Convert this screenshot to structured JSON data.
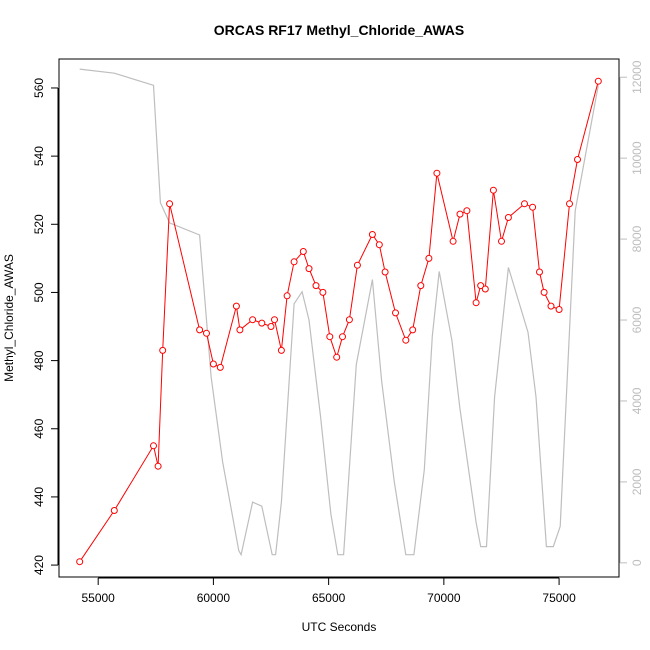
{
  "chart_data": {
    "type": "line",
    "title": "ORCAS RF17 Methyl_Chloride_AWAS",
    "xlabel": "UTC Seconds",
    "ylabel": "Methyl_Chloride_AWAS",
    "y2label": "",
    "xlim": [
      53300,
      77600
    ],
    "ylim": [
      416.5,
      568.5
    ],
    "y2lim": [
      -350,
      12450
    ],
    "x_ticks": [
      55000,
      60000,
      65000,
      70000,
      75000
    ],
    "y_ticks": [
      420,
      440,
      460,
      480,
      500,
      520,
      540,
      560
    ],
    "y2_ticks": [
      0,
      2000,
      4000,
      6000,
      8000,
      10000,
      12000
    ],
    "grid": false,
    "legend": "none",
    "colors": {
      "methyl_chloride": "#ff0000",
      "altitude": "#bebebe",
      "right_axis": "#bdbdbd",
      "frame": "#000000"
    },
    "series": [
      {
        "axis": "left",
        "style": "line+open-circles",
        "points": [
          [
            54200,
            421
          ],
          [
            55700,
            436
          ],
          [
            57400,
            455
          ],
          [
            57600,
            449
          ],
          [
            57800,
            483
          ],
          [
            58100,
            526
          ],
          [
            59400,
            489
          ],
          [
            59700,
            488
          ],
          [
            60000,
            479
          ],
          [
            60300,
            478
          ],
          [
            61000,
            496
          ],
          [
            61150,
            489
          ],
          [
            61700,
            492
          ],
          [
            62100,
            491
          ],
          [
            62500,
            490
          ],
          [
            62650,
            492
          ],
          [
            62950,
            483
          ],
          [
            63200,
            499
          ],
          [
            63500,
            509
          ],
          [
            63900,
            512
          ],
          [
            64150,
            507
          ],
          [
            64450,
            502
          ],
          [
            64750,
            500
          ],
          [
            65050,
            487
          ],
          [
            65350,
            481
          ],
          [
            65600,
            487
          ],
          [
            65900,
            492
          ],
          [
            66250,
            508
          ],
          [
            66900,
            517
          ],
          [
            67200,
            514
          ],
          [
            67450,
            506
          ],
          [
            67900,
            494
          ],
          [
            68350,
            486
          ],
          [
            68650,
            489
          ],
          [
            69000,
            502
          ],
          [
            69350,
            510
          ],
          [
            69700,
            535
          ],
          [
            70400,
            515
          ],
          [
            70700,
            523
          ],
          [
            71000,
            524
          ],
          [
            71400,
            497
          ],
          [
            71600,
            502
          ],
          [
            71800,
            501
          ],
          [
            72150,
            530
          ],
          [
            72500,
            515
          ],
          [
            72800,
            522
          ],
          [
            73500,
            526
          ],
          [
            73850,
            525
          ],
          [
            74150,
            506
          ],
          [
            74350,
            500
          ],
          [
            74650,
            496
          ],
          [
            75000,
            495
          ],
          [
            75450,
            526
          ],
          [
            75800,
            539
          ],
          [
            76700,
            562
          ]
        ]
      },
      {
        "axis": "right",
        "style": "line",
        "points": [
          [
            54200,
            12200
          ],
          [
            55700,
            12100
          ],
          [
            57400,
            11800
          ],
          [
            57700,
            8900
          ],
          [
            58100,
            8400
          ],
          [
            59400,
            8100
          ],
          [
            59900,
            4600
          ],
          [
            60400,
            2500
          ],
          [
            61100,
            300
          ],
          [
            61200,
            200
          ],
          [
            61700,
            1500
          ],
          [
            62100,
            1400
          ],
          [
            62550,
            200
          ],
          [
            62700,
            200
          ],
          [
            62950,
            1500
          ],
          [
            63500,
            6400
          ],
          [
            63850,
            6700
          ],
          [
            64150,
            6000
          ],
          [
            64650,
            3600
          ],
          [
            65100,
            1200
          ],
          [
            65400,
            200
          ],
          [
            65650,
            200
          ],
          [
            66200,
            4900
          ],
          [
            66900,
            7000
          ],
          [
            67300,
            4500
          ],
          [
            67850,
            2000
          ],
          [
            68350,
            200
          ],
          [
            68700,
            200
          ],
          [
            69150,
            2300
          ],
          [
            69500,
            5600
          ],
          [
            69800,
            7200
          ],
          [
            70350,
            5500
          ],
          [
            70700,
            3800
          ],
          [
            71400,
            1000
          ],
          [
            71600,
            400
          ],
          [
            71850,
            400
          ],
          [
            72200,
            4100
          ],
          [
            72800,
            7300
          ],
          [
            73650,
            5700
          ],
          [
            74000,
            4100
          ],
          [
            74450,
            400
          ],
          [
            74750,
            400
          ],
          [
            75050,
            900
          ],
          [
            75700,
            8700
          ],
          [
            76700,
            11800
          ]
        ]
      }
    ]
  }
}
